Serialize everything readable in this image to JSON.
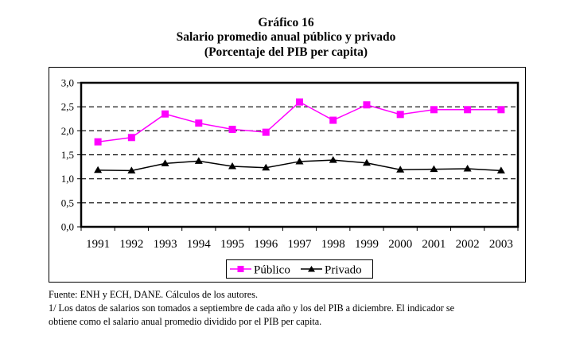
{
  "header": {
    "chart_number": "Gráfico 16",
    "title": "Salario promedio anual público y privado",
    "subtitle": "(Porcentaje del PIB per capita)"
  },
  "chart_data": {
    "type": "line",
    "title": "Salario promedio anual público y privado",
    "subtitle": "(Porcentaje del PIB per capita)",
    "xlabel": "",
    "ylabel": "",
    "categories": [
      "1991",
      "1992",
      "1993",
      "1994",
      "1995",
      "1996",
      "1997",
      "1998",
      "1999",
      "2000",
      "2001",
      "2002",
      "2003"
    ],
    "ylim": [
      0,
      3
    ],
    "yticks": [
      0,
      0.5,
      1.0,
      1.5,
      2.0,
      2.5,
      3.0
    ],
    "ytick_labels": [
      "0,0",
      "0,5",
      "1,0",
      "1,5",
      "2,0",
      "2,5",
      "3,0"
    ],
    "grid": "horizontal dashed",
    "legend_position": "bottom-center",
    "series": [
      {
        "name": "Público",
        "color": "#FF00FF",
        "marker": "square",
        "values": [
          1.77,
          1.86,
          2.35,
          2.16,
          2.03,
          1.97,
          2.6,
          2.22,
          2.54,
          2.34,
          2.44,
          2.44,
          2.44
        ]
      },
      {
        "name": "Privado",
        "color": "#000000",
        "marker": "triangle",
        "values": [
          1.18,
          1.17,
          1.32,
          1.37,
          1.26,
          1.23,
          1.36,
          1.39,
          1.33,
          1.19,
          1.2,
          1.21,
          1.17
        ]
      }
    ]
  },
  "notes": {
    "source": "Fuente: ENH y ECH, DANE. Cálculos de los autores.",
    "footnote_line1": "1/ Los datos de salarios son tomados a septiembre de cada año y los del PIB a diciembre. El indicador se",
    "footnote_line2": "obtiene como el salario anual promedio dividido por el PIB per capita."
  }
}
